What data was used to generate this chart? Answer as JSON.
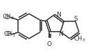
{
  "bg_color": "#ffffff",
  "line_color": "#2a2a2a",
  "line_width": 1.1,
  "font_size": 6.5,
  "figsize": [
    1.53,
    0.8
  ],
  "dpi": 100,
  "xlim": [
    0,
    153
  ],
  "ylim": [
    0,
    80
  ]
}
